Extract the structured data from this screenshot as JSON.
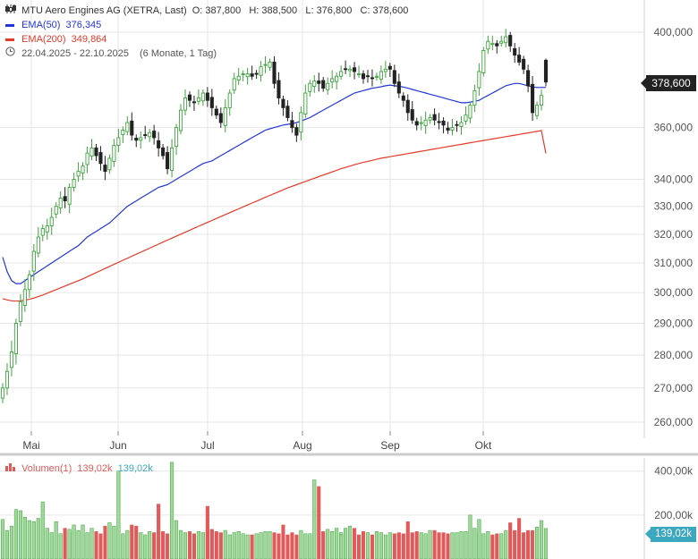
{
  "header": {
    "title": "MTU Aero Engines AG (XETRA, Last)",
    "ohlc": "O: 387,800   H: 388,500   L: 376,800   C: 378,600",
    "ema50_label": "EMA(50)",
    "ema50_value": "376,345",
    "ema200_label": "EMA(200)",
    "ema200_value": "349,864",
    "range": "22.04.2025 - 22.10.2025",
    "range_detail": "(6 Monate, 1 Tag)"
  },
  "volume_legend": {
    "label": "Volumen(1)",
    "value_red": "139,02k",
    "value_blue": "139,02k"
  },
  "price_tag": "378,600",
  "volume_tag": "139,02k",
  "colors": {
    "up": "#3fa33f",
    "up_fill": "#9fd89a",
    "down": "#222222",
    "vol_down": "#e05a5a",
    "ema50": "#2236d4",
    "ema200": "#e23b2b",
    "grid": "#e6e6e6"
  },
  "chart_data": [
    {
      "type": "candlestick",
      "title": "MTU Aero Engines AG (XETRA, Last)",
      "x_ticks": [
        "Mai",
        "Jun",
        "Jul",
        "Aug",
        "Sep",
        "Okt"
      ],
      "y_ticks": [
        "260,000",
        "270,000",
        "280,000",
        "290,000",
        "300,000",
        "310,000",
        "320,000",
        "330,000",
        "340,000",
        "360,000",
        "400,000"
      ],
      "y_tick_values": [
        260,
        270,
        280,
        290,
        300,
        310,
        320,
        330,
        340,
        360,
        400
      ],
      "y_scale": "log",
      "ylim": [
        250,
        410
      ],
      "grid": true,
      "last": {
        "open": 387.8,
        "high": 388.5,
        "low": 376.8,
        "close": 378.6
      },
      "closes": [
        270,
        275,
        281,
        290,
        297,
        301,
        306,
        314,
        319,
        322,
        323,
        326,
        330,
        333,
        332,
        337,
        340,
        343,
        345,
        350,
        352,
        349,
        346,
        343,
        348,
        353,
        356,
        359,
        362,
        357,
        355,
        356,
        357,
        358,
        356,
        352,
        349,
        344,
        352,
        360,
        367,
        372,
        371,
        370,
        372,
        374,
        371,
        368,
        365,
        362,
        368,
        374,
        380,
        381,
        382,
        382,
        381,
        382,
        385,
        386,
        387,
        378,
        372,
        368,
        364,
        360,
        357,
        366,
        374,
        378,
        379,
        378,
        376,
        378,
        380,
        381,
        383,
        384,
        384,
        383,
        382,
        380,
        381,
        380,
        381,
        383,
        384,
        384,
        378,
        374,
        371,
        366,
        363,
        361,
        362,
        363,
        364,
        363,
        362,
        361,
        359,
        360,
        361,
        362,
        365,
        369,
        375,
        383,
        392,
        396,
        395,
        394,
        396,
        398,
        394,
        390,
        387,
        384,
        377,
        366,
        369,
        373,
        378.6
      ],
      "ema50": [
        312,
        307,
        304,
        303,
        303,
        304,
        305,
        306,
        307,
        308,
        309,
        310,
        311,
        312,
        313,
        314,
        315,
        316,
        317.5,
        319,
        320,
        321,
        322,
        323,
        324,
        325.5,
        327,
        328.5,
        330,
        331,
        332,
        333,
        334,
        335,
        336,
        337,
        337.5,
        338,
        339,
        340,
        341,
        342,
        343,
        344,
        345,
        346,
        346.5,
        347,
        348,
        349,
        350,
        351,
        352,
        353,
        354,
        355,
        356,
        357,
        358,
        359,
        359.5,
        360,
        360.5,
        361,
        361.3,
        361.5,
        362,
        362.6,
        363.3,
        364,
        365,
        366,
        367,
        368,
        369,
        370,
        371,
        372,
        373,
        374,
        374.5,
        375,
        375.5,
        376,
        376.3,
        376.6,
        377,
        377.3,
        377,
        376.8,
        376.5,
        376,
        375.5,
        375,
        374.5,
        374,
        373.5,
        373,
        372.5,
        372,
        371.5,
        371,
        370.5,
        370,
        370,
        370.3,
        370.6,
        371,
        372,
        373,
        374,
        375,
        376,
        377,
        377.5,
        378,
        378,
        377.5,
        377,
        376.5,
        376.3,
        376.3,
        376.345
      ],
      "ema200": [
        298,
        297.6,
        297.3,
        297.2,
        297.3,
        297.5,
        297.8,
        298.2,
        298.7,
        299.2,
        299.8,
        300.4,
        301,
        301.6,
        302.2,
        302.8,
        303.4,
        304,
        304.6,
        305.3,
        306,
        306.7,
        307.4,
        308.1,
        308.8,
        309.5,
        310.2,
        310.9,
        311.6,
        312.3,
        313,
        313.7,
        314.4,
        315.1,
        315.8,
        316.5,
        317.2,
        317.9,
        318.6,
        319.3,
        320,
        320.7,
        321.4,
        322.1,
        322.8,
        323.5,
        324.2,
        324.9,
        325.6,
        326.3,
        327,
        327.7,
        328.4,
        329.1,
        329.8,
        330.5,
        331.2,
        331.9,
        332.6,
        333.3,
        334,
        334.7,
        335.4,
        336.1,
        336.8,
        337.4,
        338,
        338.6,
        339.2,
        339.8,
        340.4,
        341,
        341.6,
        342.2,
        342.8,
        343.4,
        344,
        344.5,
        345,
        345.5,
        346,
        346.4,
        346.8,
        347.2,
        347.6,
        348,
        348.3,
        348.6,
        348.9,
        349.2,
        349.5,
        349.8,
        350.1,
        350.4,
        350.7,
        351,
        351.3,
        351.6,
        351.9,
        352.2,
        352.5,
        352.8,
        353.1,
        353.4,
        353.7,
        354,
        354.3,
        354.6,
        354.9,
        355.2,
        355.5,
        355.8,
        356.1,
        356.4,
        356.7,
        357,
        357.3,
        357.6,
        357.9,
        358.2,
        358.5,
        358.8,
        349.864
      ],
      "series": [
        {
          "name": "EMA(50)",
          "last": 376.345
        },
        {
          "name": "EMA(200)",
          "last": 349.864
        }
      ]
    },
    {
      "type": "bar",
      "title": "Volumen(1)",
      "y_ticks": [
        "200,00k",
        "400,00k"
      ],
      "y_tick_values": [
        200,
        400
      ],
      "ylim": [
        0,
        460
      ],
      "last": 139.02,
      "values": [
        180,
        130,
        150,
        225,
        220,
        190,
        175,
        170,
        185,
        260,
        140,
        120,
        170,
        115,
        140,
        120,
        135,
        155,
        130,
        155,
        120,
        140,
        125,
        115,
        150,
        165,
        150,
        400,
        115,
        130,
        155,
        150,
        120,
        110,
        125,
        120,
        250,
        125,
        115,
        440,
        175,
        130,
        120,
        125,
        115,
        125,
        120,
        130,
        240,
        135,
        125,
        120,
        130,
        110,
        120,
        125,
        115,
        110,
        110,
        115,
        120,
        125,
        125,
        120,
        115,
        155,
        110,
        120,
        110,
        130,
        115,
        115,
        360,
        330,
        125,
        135,
        125,
        140,
        120,
        110,
        140,
        150,
        140,
        110,
        125,
        120,
        110,
        125,
        120,
        110,
        120,
        115,
        120,
        115,
        170,
        120,
        125,
        120,
        115,
        130,
        130,
        120,
        120,
        115,
        120,
        120,
        125,
        125,
        200,
        140,
        120,
        180,
        115,
        125,
        110,
        115,
        115,
        130,
        165,
        130,
        185,
        120,
        130,
        130,
        145,
        175,
        139.02
      ]
    }
  ]
}
